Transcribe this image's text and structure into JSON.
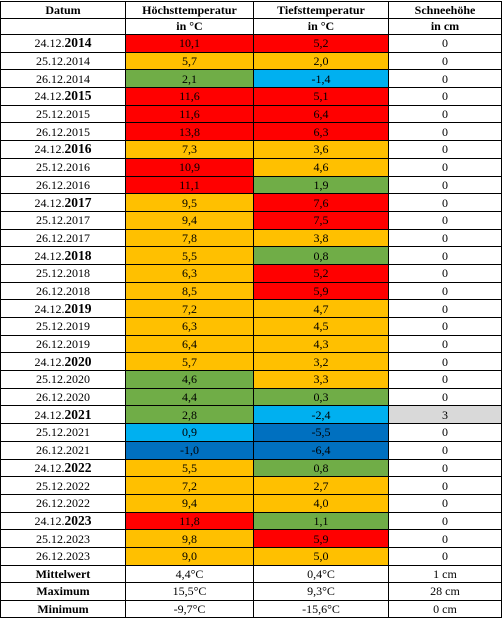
{
  "header": {
    "row1": [
      "Datum",
      "Höchsttemperatur",
      "Tiefsttemperatur",
      "Schneehöhe"
    ],
    "row2": [
      "in °C",
      "in °C",
      "in cm"
    ]
  },
  "colors": {
    "red": "#ff0000",
    "orange": "#ffc000",
    "green": "#70ad47",
    "lightblue": "#00b0f0",
    "darkblue": "#0070c0",
    "gray": "#d9d9d9"
  },
  "rows": [
    {
      "date": {
        "day": "24.12.",
        "year": "2014"
      },
      "high": {
        "text": "10,1",
        "fill": "red"
      },
      "low": {
        "text": "5,2",
        "fill": "red"
      },
      "snow": {
        "text": "0"
      }
    },
    {
      "date": "25.12.2014",
      "high": {
        "text": "5,7",
        "fill": "orange"
      },
      "low": {
        "text": "2,0",
        "fill": "orange"
      },
      "snow": {
        "text": "0"
      }
    },
    {
      "date": "26.12.2014",
      "high": {
        "text": "2,1",
        "fill": "green"
      },
      "low": {
        "text": "-1,4",
        "fill": "lightblue"
      },
      "snow": {
        "text": "0"
      }
    },
    {
      "date": {
        "day": "24.12.",
        "year": "2015"
      },
      "high": {
        "text": "11,6",
        "fill": "red"
      },
      "low": {
        "text": "5,1",
        "fill": "red"
      },
      "snow": {
        "text": "0"
      }
    },
    {
      "date": "25.12.2015",
      "high": {
        "text": "11,6",
        "fill": "red"
      },
      "low": {
        "text": "6,4",
        "fill": "red"
      },
      "snow": {
        "text": "0"
      }
    },
    {
      "date": "26.12.2015",
      "high": {
        "text": "13,8",
        "fill": "red"
      },
      "low": {
        "text": "6,3",
        "fill": "red"
      },
      "snow": {
        "text": "0"
      }
    },
    {
      "date": {
        "day": "24.12.",
        "year": "2016"
      },
      "high": {
        "text": "7,3",
        "fill": "orange"
      },
      "low": {
        "text": "3,6",
        "fill": "orange"
      },
      "snow": {
        "text": "0"
      }
    },
    {
      "date": "25.12.2016",
      "high": {
        "text": "10,9",
        "fill": "red"
      },
      "low": {
        "text": "4,6",
        "fill": "orange"
      },
      "snow": {
        "text": "0"
      }
    },
    {
      "date": "26.12.2016",
      "high": {
        "text": "11,1",
        "fill": "red"
      },
      "low": {
        "text": "1,9",
        "fill": "green"
      },
      "snow": {
        "text": "0"
      }
    },
    {
      "date": {
        "day": "24.12.",
        "year": "2017"
      },
      "high": {
        "text": "9,5",
        "fill": "orange"
      },
      "low": {
        "text": "7,6",
        "fill": "red"
      },
      "snow": {
        "text": "0"
      }
    },
    {
      "date": "25.12.2017",
      "high": {
        "text": "9,4",
        "fill": "orange"
      },
      "low": {
        "text": "7,5",
        "fill": "red"
      },
      "snow": {
        "text": "0"
      }
    },
    {
      "date": "26.12.2017",
      "high": {
        "text": "7,8",
        "fill": "orange"
      },
      "low": {
        "text": "3,8",
        "fill": "orange"
      },
      "snow": {
        "text": "0"
      }
    },
    {
      "date": {
        "day": "24.12.",
        "year": "2018"
      },
      "high": {
        "text": "5,5",
        "fill": "orange"
      },
      "low": {
        "text": "0,8",
        "fill": "green"
      },
      "snow": {
        "text": "0"
      }
    },
    {
      "date": "25.12.2018",
      "high": {
        "text": "6,3",
        "fill": "orange"
      },
      "low": {
        "text": "5,2",
        "fill": "red"
      },
      "snow": {
        "text": "0"
      }
    },
    {
      "date": "26.12.2018",
      "high": {
        "text": "8,5",
        "fill": "orange"
      },
      "low": {
        "text": "5,9",
        "fill": "red"
      },
      "snow": {
        "text": "0"
      }
    },
    {
      "date": {
        "day": "24.12.",
        "year": "2019"
      },
      "high": {
        "text": "7,2",
        "fill": "orange"
      },
      "low": {
        "text": "4,7",
        "fill": "orange"
      },
      "snow": {
        "text": "0"
      }
    },
    {
      "date": "25.12.2019",
      "high": {
        "text": "6,3",
        "fill": "orange"
      },
      "low": {
        "text": "4,5",
        "fill": "orange"
      },
      "snow": {
        "text": "0"
      }
    },
    {
      "date": "26.12.2019",
      "high": {
        "text": "6,4",
        "fill": "orange"
      },
      "low": {
        "text": "4,3",
        "fill": "orange"
      },
      "snow": {
        "text": "0"
      }
    },
    {
      "date": {
        "day": "24.12.",
        "year": "2020"
      },
      "high": {
        "text": "5,7",
        "fill": "orange"
      },
      "low": {
        "text": "3,2",
        "fill": "orange"
      },
      "snow": {
        "text": "0"
      }
    },
    {
      "date": "25.12.2020",
      "high": {
        "text": "4,6",
        "fill": "green"
      },
      "low": {
        "text": "3,3",
        "fill": "orange"
      },
      "snow": {
        "text": "0"
      }
    },
    {
      "date": "26.12.2020",
      "high": {
        "text": "4,4",
        "fill": "green"
      },
      "low": {
        "text": "0,3",
        "fill": "green"
      },
      "snow": {
        "text": "0"
      }
    },
    {
      "date": {
        "day": "24.12.",
        "year": "2021"
      },
      "high": {
        "text": "2,8",
        "fill": "green"
      },
      "low": {
        "text": "-2,4",
        "fill": "lightblue"
      },
      "snow": {
        "text": "3",
        "fill": "gray"
      }
    },
    {
      "date": "25.12.2021",
      "high": {
        "text": "0,9",
        "fill": "lightblue"
      },
      "low": {
        "text": "-5,5",
        "fill": "darkblue"
      },
      "snow": {
        "text": "0"
      }
    },
    {
      "date": "26.12.2021",
      "high": {
        "text": "-1,0",
        "fill": "darkblue"
      },
      "low": {
        "text": "-6,4",
        "fill": "darkblue"
      },
      "snow": {
        "text": "0"
      }
    },
    {
      "date": {
        "day": "24.12.",
        "year": "2022"
      },
      "high": {
        "text": "5,5",
        "fill": "orange"
      },
      "low": {
        "text": "0,8",
        "fill": "green"
      },
      "snow": {
        "text": "0"
      }
    },
    {
      "date": "25.12.2022",
      "high": {
        "text": "7,2",
        "fill": "orange"
      },
      "low": {
        "text": "2,7",
        "fill": "orange"
      },
      "snow": {
        "text": "0"
      }
    },
    {
      "date": "26.12.2022",
      "high": {
        "text": "9,4",
        "fill": "orange"
      },
      "low": {
        "text": "4,0",
        "fill": "orange"
      },
      "snow": {
        "text": "0"
      }
    },
    {
      "date": {
        "day": "24.12.",
        "year": "2023"
      },
      "high": {
        "text": "11,8",
        "fill": "red"
      },
      "low": {
        "text": "1,1",
        "fill": "green"
      },
      "snow": {
        "text": "0"
      }
    },
    {
      "date": "25.12.2023",
      "high": {
        "text": "9,8",
        "fill": "orange"
      },
      "low": {
        "text": "5,9",
        "fill": "red"
      },
      "snow": {
        "text": "0"
      }
    },
    {
      "date": "26.12.2023",
      "high": {
        "text": "9,0",
        "fill": "orange"
      },
      "low": {
        "text": "5,0",
        "fill": "orange"
      },
      "snow": {
        "text": "0"
      }
    }
  ],
  "summary": [
    [
      "Mittelwert",
      "4,4°C",
      "0,4°C",
      "1 cm"
    ],
    [
      "Maximum",
      "15,5°C",
      "9,3°C",
      "28 cm"
    ],
    [
      "Minimum",
      "-9,7°C",
      "-15,6°C",
      "0 cm"
    ]
  ]
}
